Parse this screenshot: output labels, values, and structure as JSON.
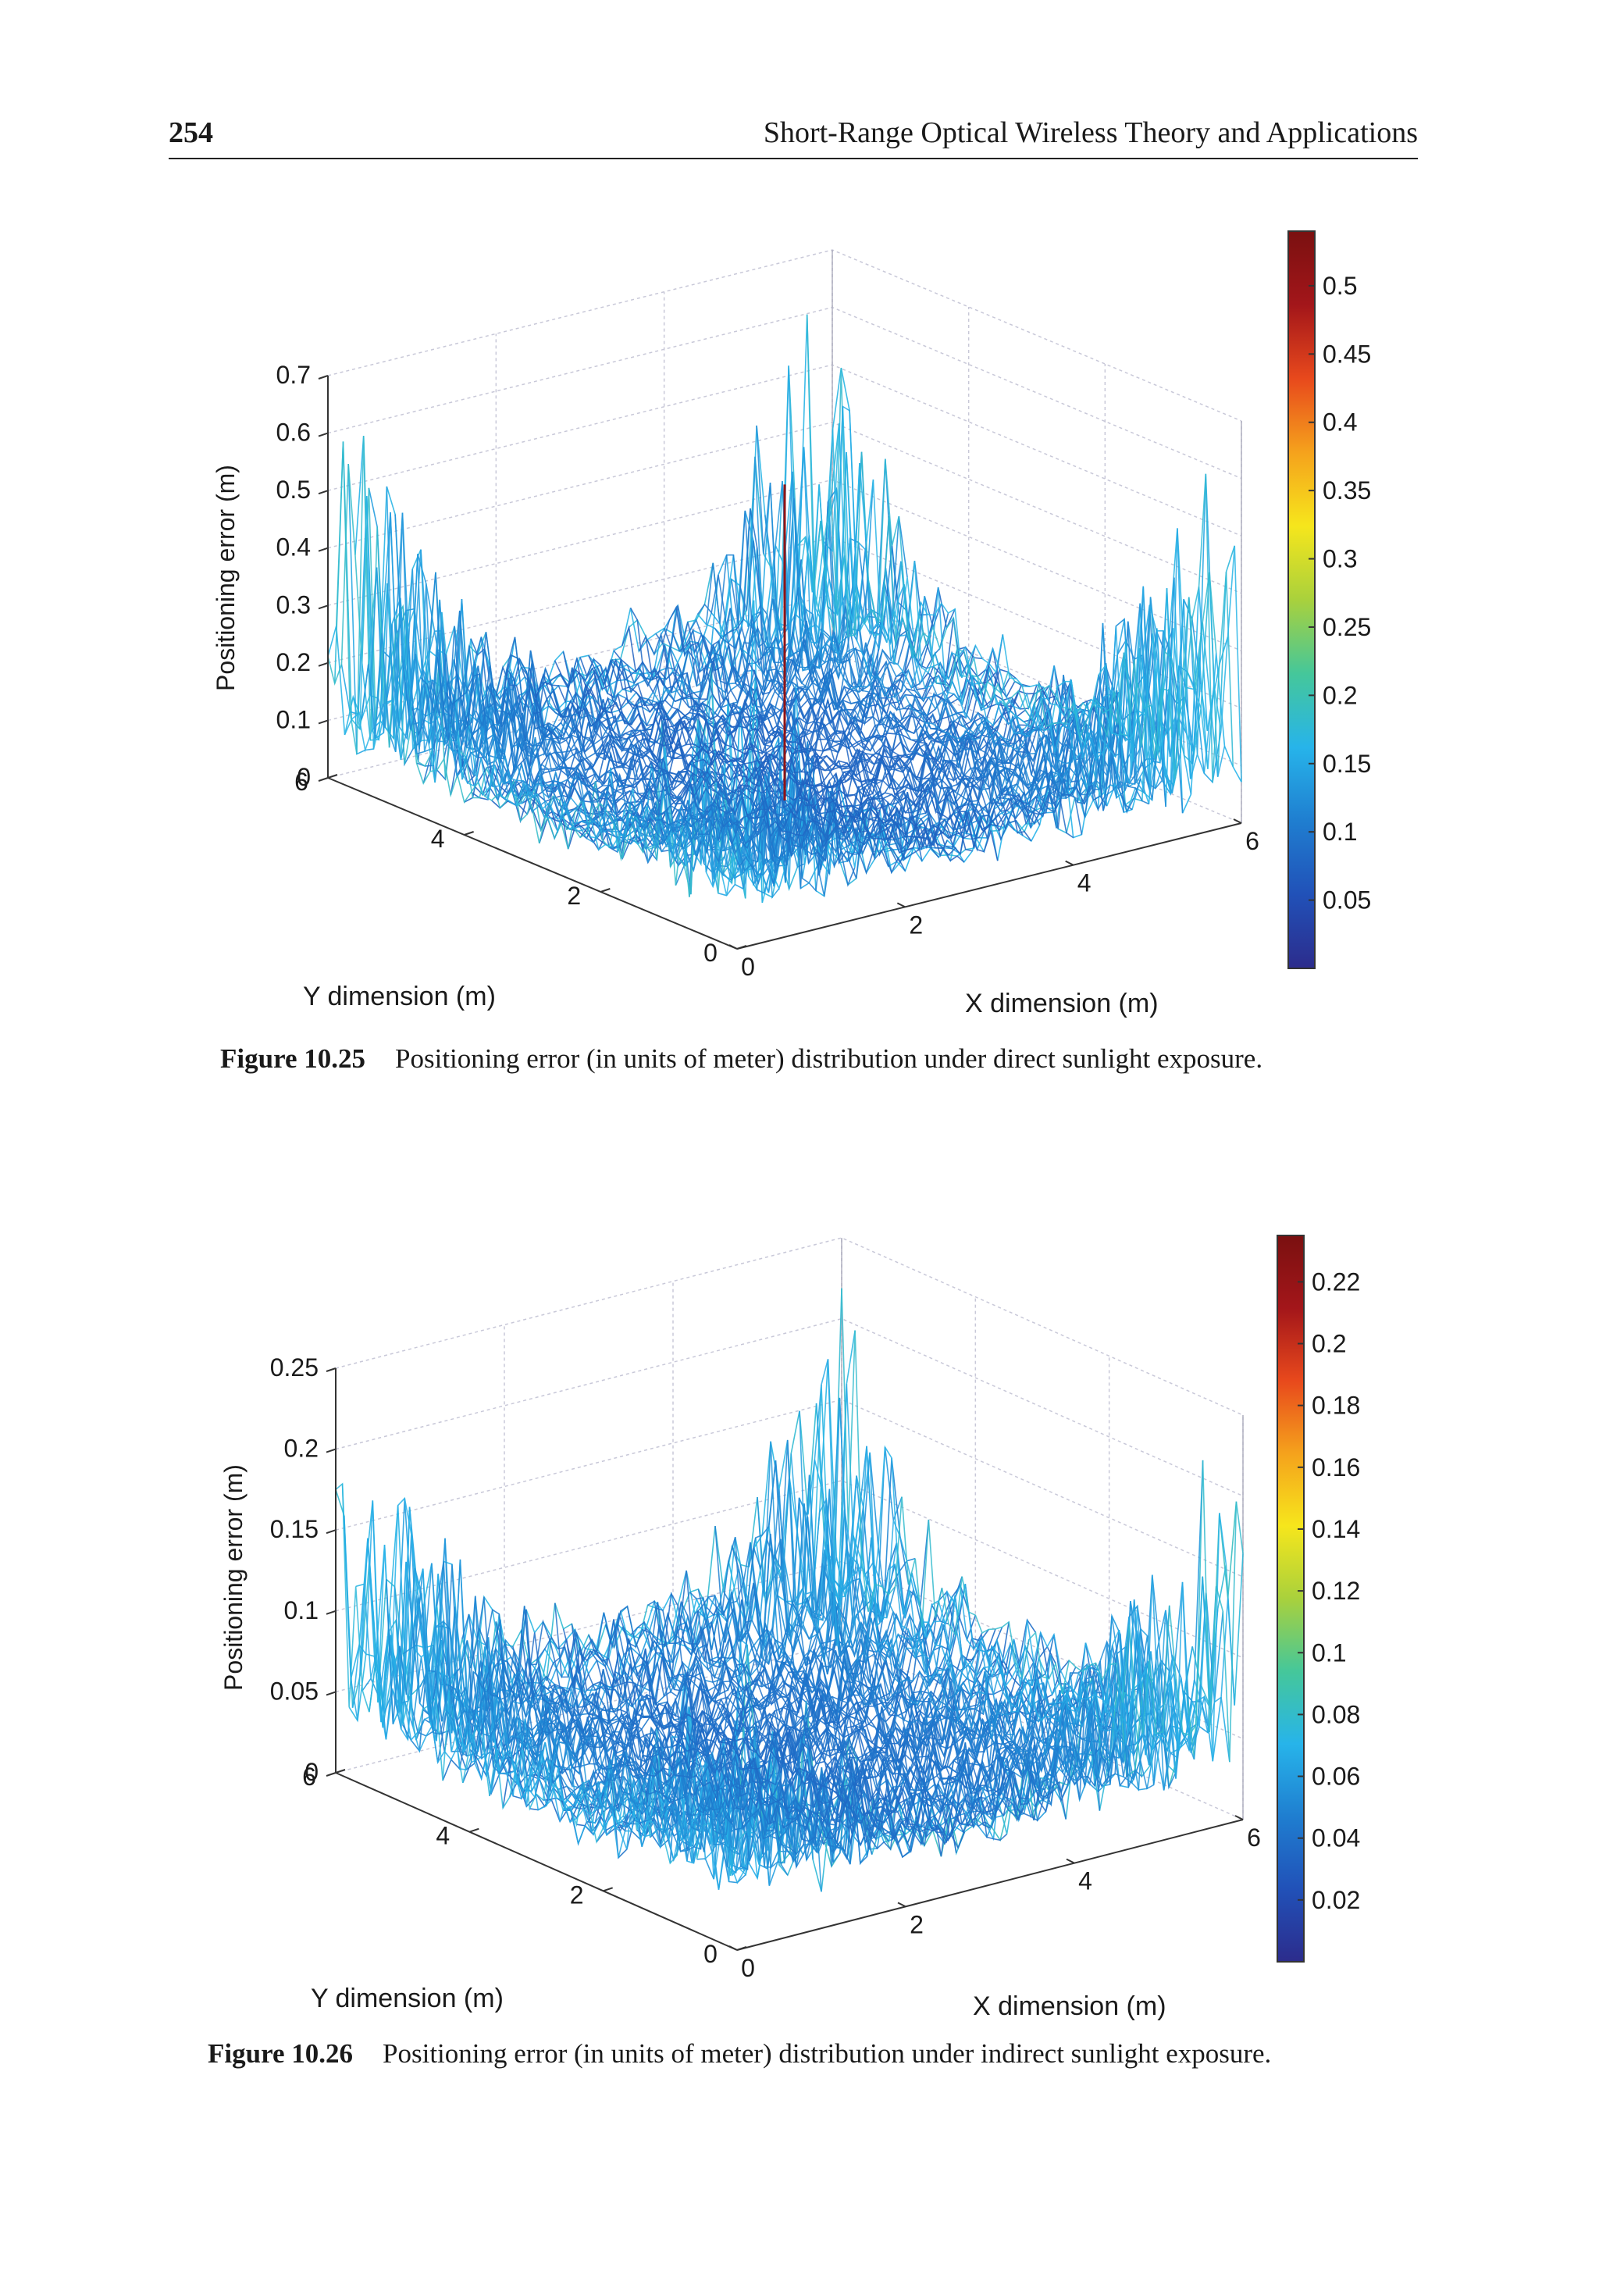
{
  "header": {
    "page_number": "254",
    "running_title": "Short-Range Optical Wireless Theory and Applications"
  },
  "figures": [
    {
      "label": "Figure 10.25",
      "caption": "Positioning error (in units of meter) distribution under direct sunlight exposure."
    },
    {
      "label": "Figure 10.26",
      "caption": "Positioning error (in units of meter) distribution under indirect sunlight exposure."
    }
  ],
  "chart_data": [
    {
      "type": "surface",
      "title": "",
      "xlabel": "X dimension (m)",
      "ylabel": "Y dimension (m)",
      "zlabel": "Positioning error (m)",
      "xlim": [
        0,
        6
      ],
      "ylim": [
        0,
        6
      ],
      "zlim": [
        0,
        0.7
      ],
      "x_ticks": [
        "0",
        "2",
        "4",
        "6"
      ],
      "y_ticks": [
        "0",
        "2",
        "4",
        "6"
      ],
      "z_ticks": [
        "0",
        "0.1",
        "0.2",
        "0.3",
        "0.4",
        "0.5",
        "0.6",
        "0.7"
      ],
      "colorbar_ticks": [
        "0.05",
        "0.1",
        "0.15",
        "0.2",
        "0.25",
        "0.3",
        "0.35",
        "0.4",
        "0.45",
        "0.5"
      ],
      "colorbar_range": [
        0,
        0.54
      ],
      "typical_error": 0.1,
      "peak_error": 0.65,
      "spike_error": 0.55,
      "spike_location": [
        0.5,
        0.5
      ],
      "colormap": [
        "#2c2c8c",
        "#2151b8",
        "#1f7ed0",
        "#27b4ea",
        "#45c79a",
        "#a9d13c",
        "#f6e61c",
        "#f5a21c",
        "#e8491c",
        "#a3161a",
        "#7a1010"
      ]
    },
    {
      "type": "surface",
      "title": "",
      "xlabel": "X dimension (m)",
      "ylabel": "Y dimension (m)",
      "zlabel": "Positioning error (m)",
      "xlim": [
        0,
        6
      ],
      "ylim": [
        0,
        6
      ],
      "zlim": [
        0,
        0.25
      ],
      "x_ticks": [
        "0",
        "2",
        "4",
        "6"
      ],
      "y_ticks": [
        "0",
        "2",
        "4",
        "6"
      ],
      "z_ticks": [
        "0",
        "0.05",
        "0.1",
        "0.15",
        "0.2",
        "0.25"
      ],
      "colorbar_ticks": [
        "0.02",
        "0.04",
        "0.06",
        "0.08",
        "0.1",
        "0.12",
        "0.14",
        "0.16",
        "0.18",
        "0.2",
        "0.22"
      ],
      "colorbar_range": [
        0,
        0.235
      ],
      "typical_error": 0.05,
      "peak_error": 0.22,
      "spike_error": 0,
      "spike_location": [
        0.5,
        0.5
      ],
      "colormap": [
        "#2c2c8c",
        "#2151b8",
        "#1f7ed0",
        "#27b4ea",
        "#45c79a",
        "#a9d13c",
        "#f6e61c",
        "#f5a21c",
        "#e8491c",
        "#a3161a",
        "#7a1010"
      ]
    }
  ]
}
